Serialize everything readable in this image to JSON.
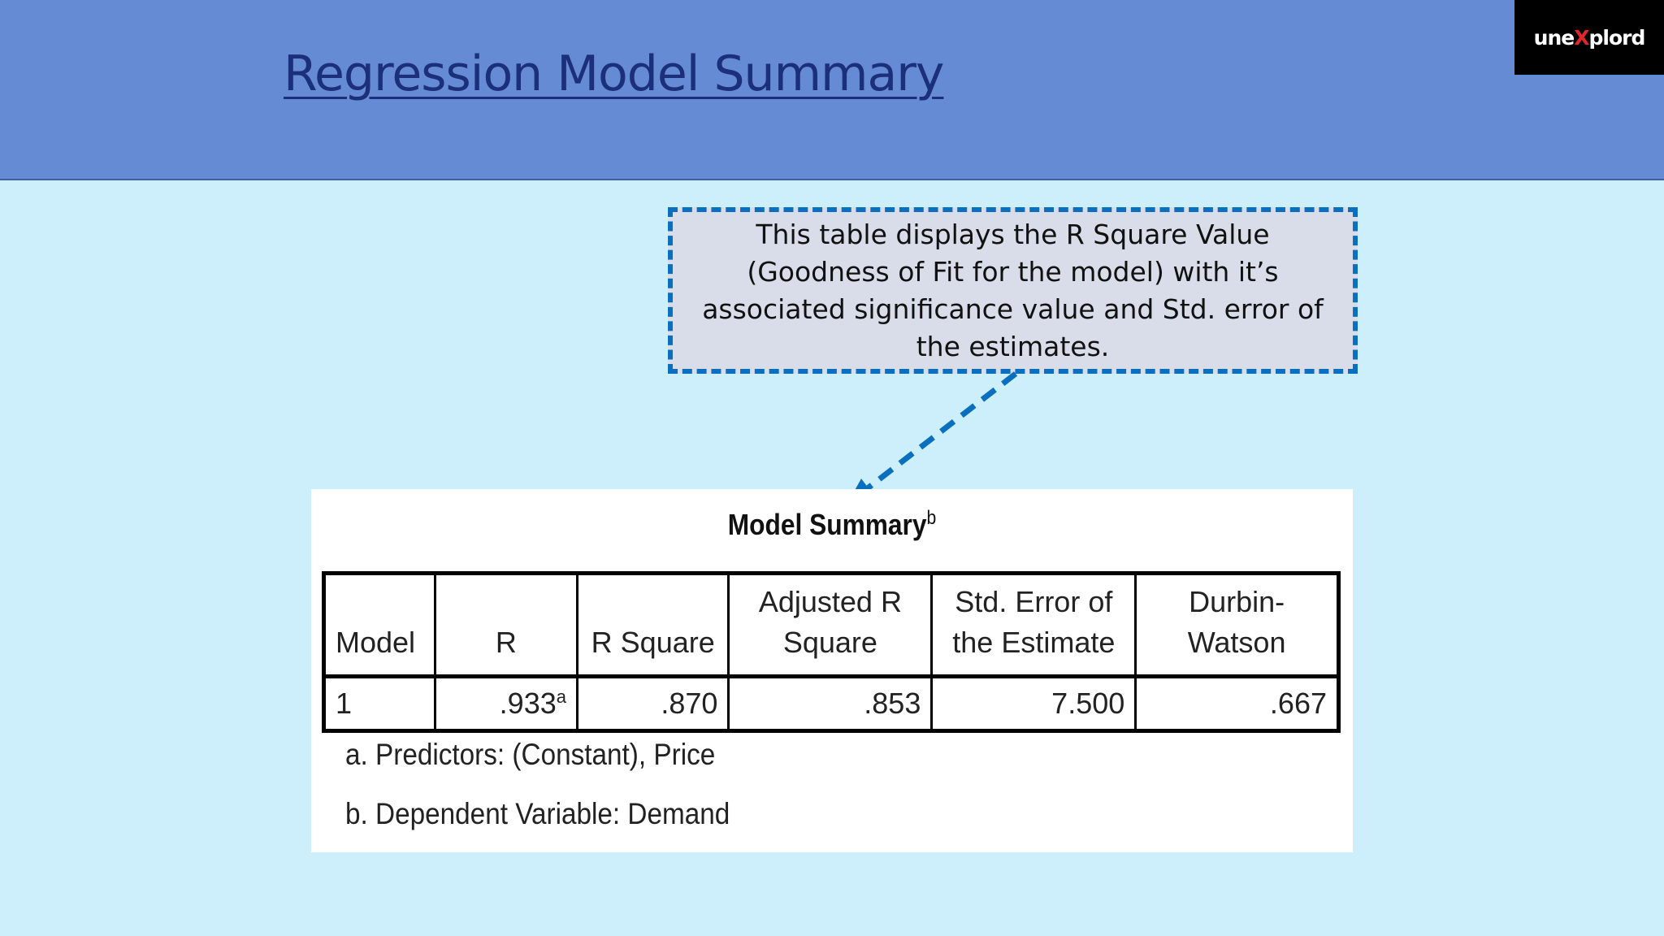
{
  "slide": {
    "title": "Regression Model Summary",
    "logo": {
      "prefix": "une",
      "x": "X",
      "suffix": "plord"
    },
    "callout": "This table displays the R Square Value (Goodness of Fit for the model) with it’s associated significance value and Std. error of the estimates."
  },
  "model_summary": {
    "title": "Model Summary",
    "title_superscript": "b",
    "headers": [
      "Model",
      "R",
      "R Square",
      "Adjusted R Square",
      "Std. Error of the Estimate",
      "Durbin-Watson"
    ],
    "row": {
      "model": "1",
      "r": ".933",
      "r_superscript": "a",
      "r_square": ".870",
      "adjusted_r_square": ".853",
      "std_error": "7.500",
      "durbin_watson": ".667"
    },
    "footnotes": [
      "a. Predictors: (Constant), Price",
      "b. Dependent Variable: Demand"
    ]
  },
  "colors": {
    "header_bg": "#648bd3",
    "slide_bg": "#cdeefb",
    "title_text": "#1b2f7a",
    "callout_border": "#0b6fbf",
    "callout_bg": "#d8dde9"
  }
}
